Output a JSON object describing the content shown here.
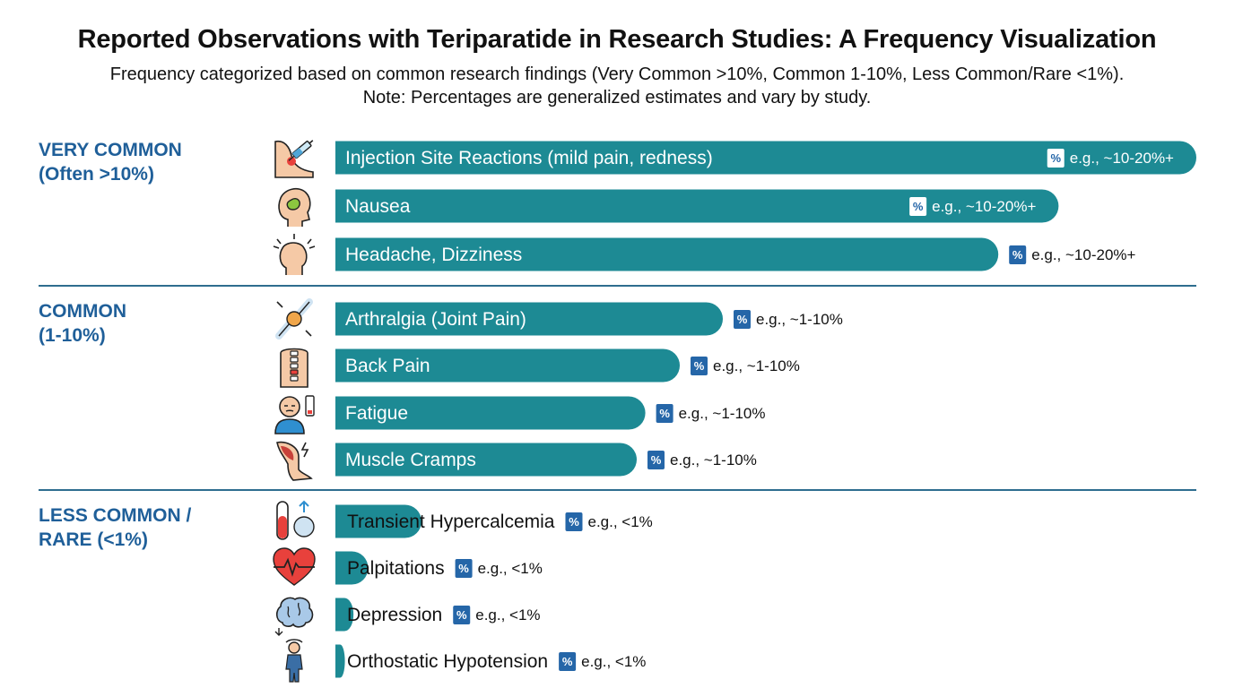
{
  "colors": {
    "bar": "#1d8a94",
    "heading": "#1f5f99",
    "badge": "#2566a8",
    "separator": "#2e6d8f"
  },
  "chart_data": {
    "type": "bar",
    "orientation": "horizontal",
    "title": "Reported Observations with Teriparatide in Research Studies: A Frequency Visualization",
    "subtitle_lines": [
      "Frequency categorized based on common research findings (Very Common >10%, Common 1-10%, Less Common/Rare <1%).",
      "Note: Percentages are generalized estimates and vary by study."
    ],
    "value_unit": "relative bar length (0-100)",
    "xlim": [
      0,
      100
    ],
    "badge_symbol": "%",
    "groups": [
      {
        "heading": [
          "VERY COMMON",
          "(Often >10%)"
        ],
        "items": [
          {
            "label": "Injection Site Reactions (mild pain, redness)",
            "value": 100,
            "annotation": "e.g., ~10-20%+",
            "icon": "injection-arm-icon"
          },
          {
            "label": "Nausea",
            "value": 84,
            "annotation": "e.g., ~10-20%+",
            "icon": "nausea-stomach-icon"
          },
          {
            "label": "Headache, Dizziness",
            "value": 77,
            "annotation": "e.g., ~10-20%+",
            "icon": "headache-icon"
          }
        ]
      },
      {
        "heading": [
          "COMMON",
          "(1-10%)"
        ],
        "items": [
          {
            "label": "Arthralgia (Joint Pain)",
            "value": 45,
            "annotation": "e.g., ~1-10%",
            "icon": "joint-pain-icon"
          },
          {
            "label": "Back Pain",
            "value": 40,
            "annotation": "e.g., ~1-10%",
            "icon": "spine-icon"
          },
          {
            "label": "Fatigue",
            "value": 36,
            "annotation": "e.g., ~1-10%",
            "icon": "fatigue-battery-icon"
          },
          {
            "label": "Muscle Cramps",
            "value": 35,
            "annotation": "e.g., ~1-10%",
            "icon": "muscle-cramp-icon"
          }
        ]
      },
      {
        "heading": [
          "LESS COMMON /",
          "RARE (<1%)"
        ],
        "items": [
          {
            "label": "Transient Hypercalcemia",
            "value": 10,
            "annotation": "e.g., <1%",
            "icon": "calcium-test-tube-icon"
          },
          {
            "label": "Palpitations",
            "value": 3.8,
            "annotation": "e.g., <1%",
            "icon": "heart-pulse-icon"
          },
          {
            "label": "Depression",
            "value": 2.1,
            "annotation": "e.g., <1%",
            "icon": "brain-icon"
          },
          {
            "label": "Orthostatic Hypotension",
            "value": 1.1,
            "annotation": "e.g., <1%",
            "icon": "dizzy-person-icon"
          }
        ]
      }
    ]
  }
}
